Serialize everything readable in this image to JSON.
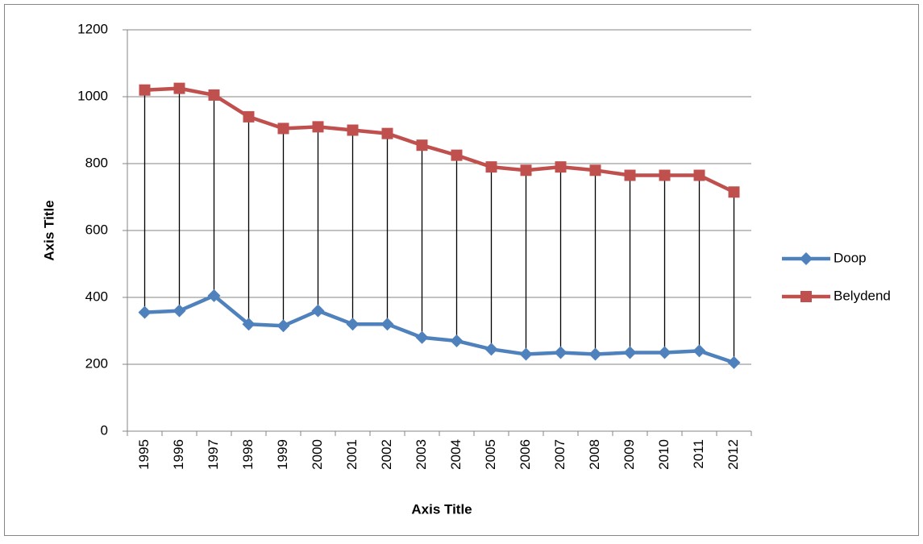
{
  "chart_data": {
    "type": "line",
    "x_label": "Axis Title",
    "y_label": "Axis Title",
    "categories": [
      "1995",
      "1996",
      "1997",
      "1998",
      "1999",
      "2000",
      "2001",
      "2002",
      "2003",
      "2004",
      "2005",
      "2006",
      "2007",
      "2008",
      "2009",
      "2010",
      "2011",
      "2012"
    ],
    "series": [
      {
        "name": "Doop",
        "color": "#4f81bd",
        "marker": "diamond",
        "values": [
          355,
          360,
          405,
          320,
          315,
          360,
          320,
          320,
          280,
          270,
          245,
          230,
          235,
          230,
          235,
          235,
          240,
          205
        ]
      },
      {
        "name": "Belydend",
        "color": "#c0504d",
        "marker": "square",
        "values": [
          1020,
          1025,
          1005,
          940,
          905,
          910,
          900,
          890,
          855,
          825,
          790,
          780,
          790,
          780,
          765,
          765,
          765,
          715
        ]
      }
    ],
    "ylim": [
      0,
      1200
    ],
    "yticks": [
      0,
      200,
      400,
      600,
      800,
      1000,
      1200
    ],
    "grid": true,
    "high_low_lines": true,
    "legend": "right"
  }
}
